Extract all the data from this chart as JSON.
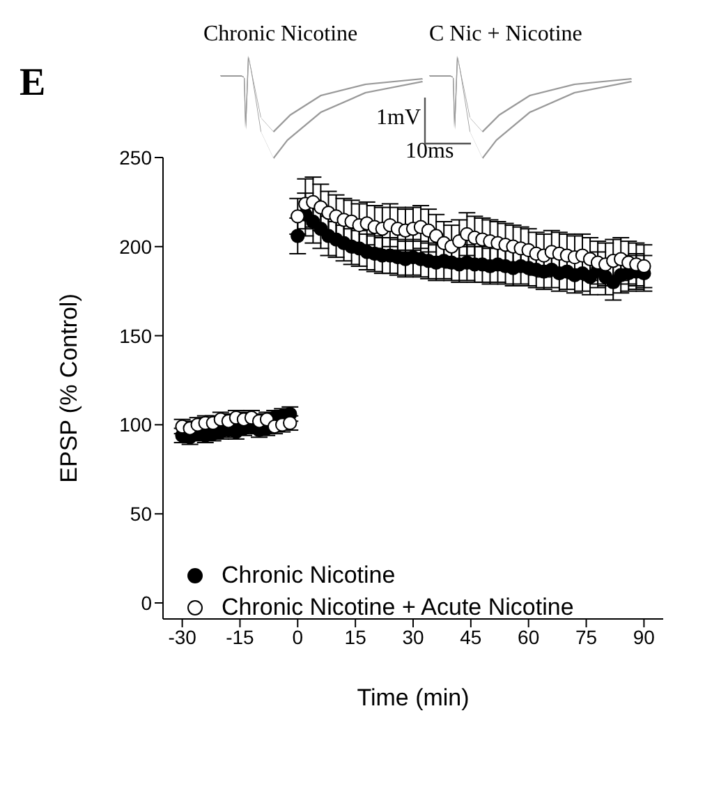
{
  "chart_data": {
    "type": "scatter",
    "title": "E",
    "xlabel": "Time (min)",
    "ylabel": "EPSP (% Control)",
    "annotations": [
      "Chronic Nicotine",
      "C Nic + Nicotine",
      "1mV",
      "10ms"
    ],
    "x": [
      -30,
      -28,
      -26,
      -24,
      -22,
      -20,
      -18,
      -16,
      -14,
      -12,
      -10,
      -8,
      -6,
      -4,
      -2,
      0,
      2,
      4,
      6,
      8,
      10,
      12,
      14,
      16,
      18,
      20,
      22,
      24,
      26,
      28,
      30,
      32,
      34,
      36,
      38,
      40,
      42,
      44,
      46,
      48,
      50,
      52,
      54,
      56,
      58,
      60,
      62,
      64,
      66,
      68,
      70,
      72,
      74,
      76,
      78,
      80,
      82,
      84,
      86,
      88,
      90
    ],
    "series": [
      {
        "name": "Chronic Nicotine",
        "color": "#000000",
        "values": [
          94,
          93,
          95,
          94,
          95,
          96,
          97,
          96,
          98,
          99,
          97,
          98,
          104,
          105,
          106,
          206,
          218,
          214,
          210,
          206,
          204,
          202,
          200,
          199,
          197,
          196,
          195,
          195,
          194,
          193,
          194,
          193,
          192,
          191,
          192,
          191,
          190,
          191,
          190,
          190,
          189,
          190,
          189,
          188,
          189,
          188,
          187,
          186,
          187,
          185,
          186,
          184,
          185,
          183,
          187,
          183,
          180,
          184,
          185,
          186,
          185
        ],
        "errors": [
          4,
          4,
          4,
          4,
          4,
          4,
          4,
          4,
          4,
          4,
          4,
          4,
          4,
          4,
          4,
          10,
          12,
          12,
          11,
          11,
          10,
          10,
          10,
          10,
          10,
          10,
          10,
          10,
          10,
          10,
          10,
          10,
          10,
          10,
          10,
          10,
          10,
          10,
          10,
          10,
          10,
          10,
          10,
          10,
          10,
          10,
          10,
          10,
          10,
          10,
          10,
          10,
          10,
          10,
          10,
          10,
          10,
          10,
          10,
          10,
          10
        ]
      },
      {
        "name": "Chronic Nicotine + Acute Nicotine",
        "color": "#ffffff",
        "values": [
          99,
          98,
          100,
          101,
          101,
          103,
          102,
          104,
          103,
          104,
          102,
          103,
          99,
          100,
          101,
          217,
          224,
          225,
          222,
          219,
          217,
          215,
          214,
          212,
          213,
          211,
          210,
          212,
          210,
          209,
          210,
          211,
          209,
          206,
          202,
          200,
          203,
          207,
          205,
          204,
          203,
          202,
          201,
          200,
          199,
          198,
          196,
          195,
          197,
          196,
          195,
          194,
          195,
          193,
          191,
          190,
          192,
          193,
          191,
          190,
          189
        ],
        "errors": [
          4,
          4,
          4,
          4,
          4,
          4,
          4,
          4,
          4,
          4,
          4,
          4,
          4,
          4,
          4,
          10,
          14,
          14,
          13,
          12,
          12,
          12,
          12,
          12,
          12,
          12,
          12,
          12,
          12,
          12,
          12,
          12,
          12,
          12,
          12,
          12,
          12,
          12,
          12,
          12,
          12,
          12,
          12,
          12,
          12,
          12,
          12,
          12,
          12,
          12,
          12,
          12,
          12,
          12,
          12,
          12,
          12,
          12,
          12,
          12,
          12
        ]
      }
    ],
    "xlim": [
      -35,
      95
    ],
    "xticks": [
      -30,
      -15,
      0,
      15,
      30,
      45,
      60,
      75,
      90
    ],
    "ylim": [
      -9,
      250
    ],
    "yticks": [
      0,
      50,
      100,
      150,
      200,
      250
    ],
    "grid": false,
    "legend": "bottom left",
    "marker": "circle"
  }
}
